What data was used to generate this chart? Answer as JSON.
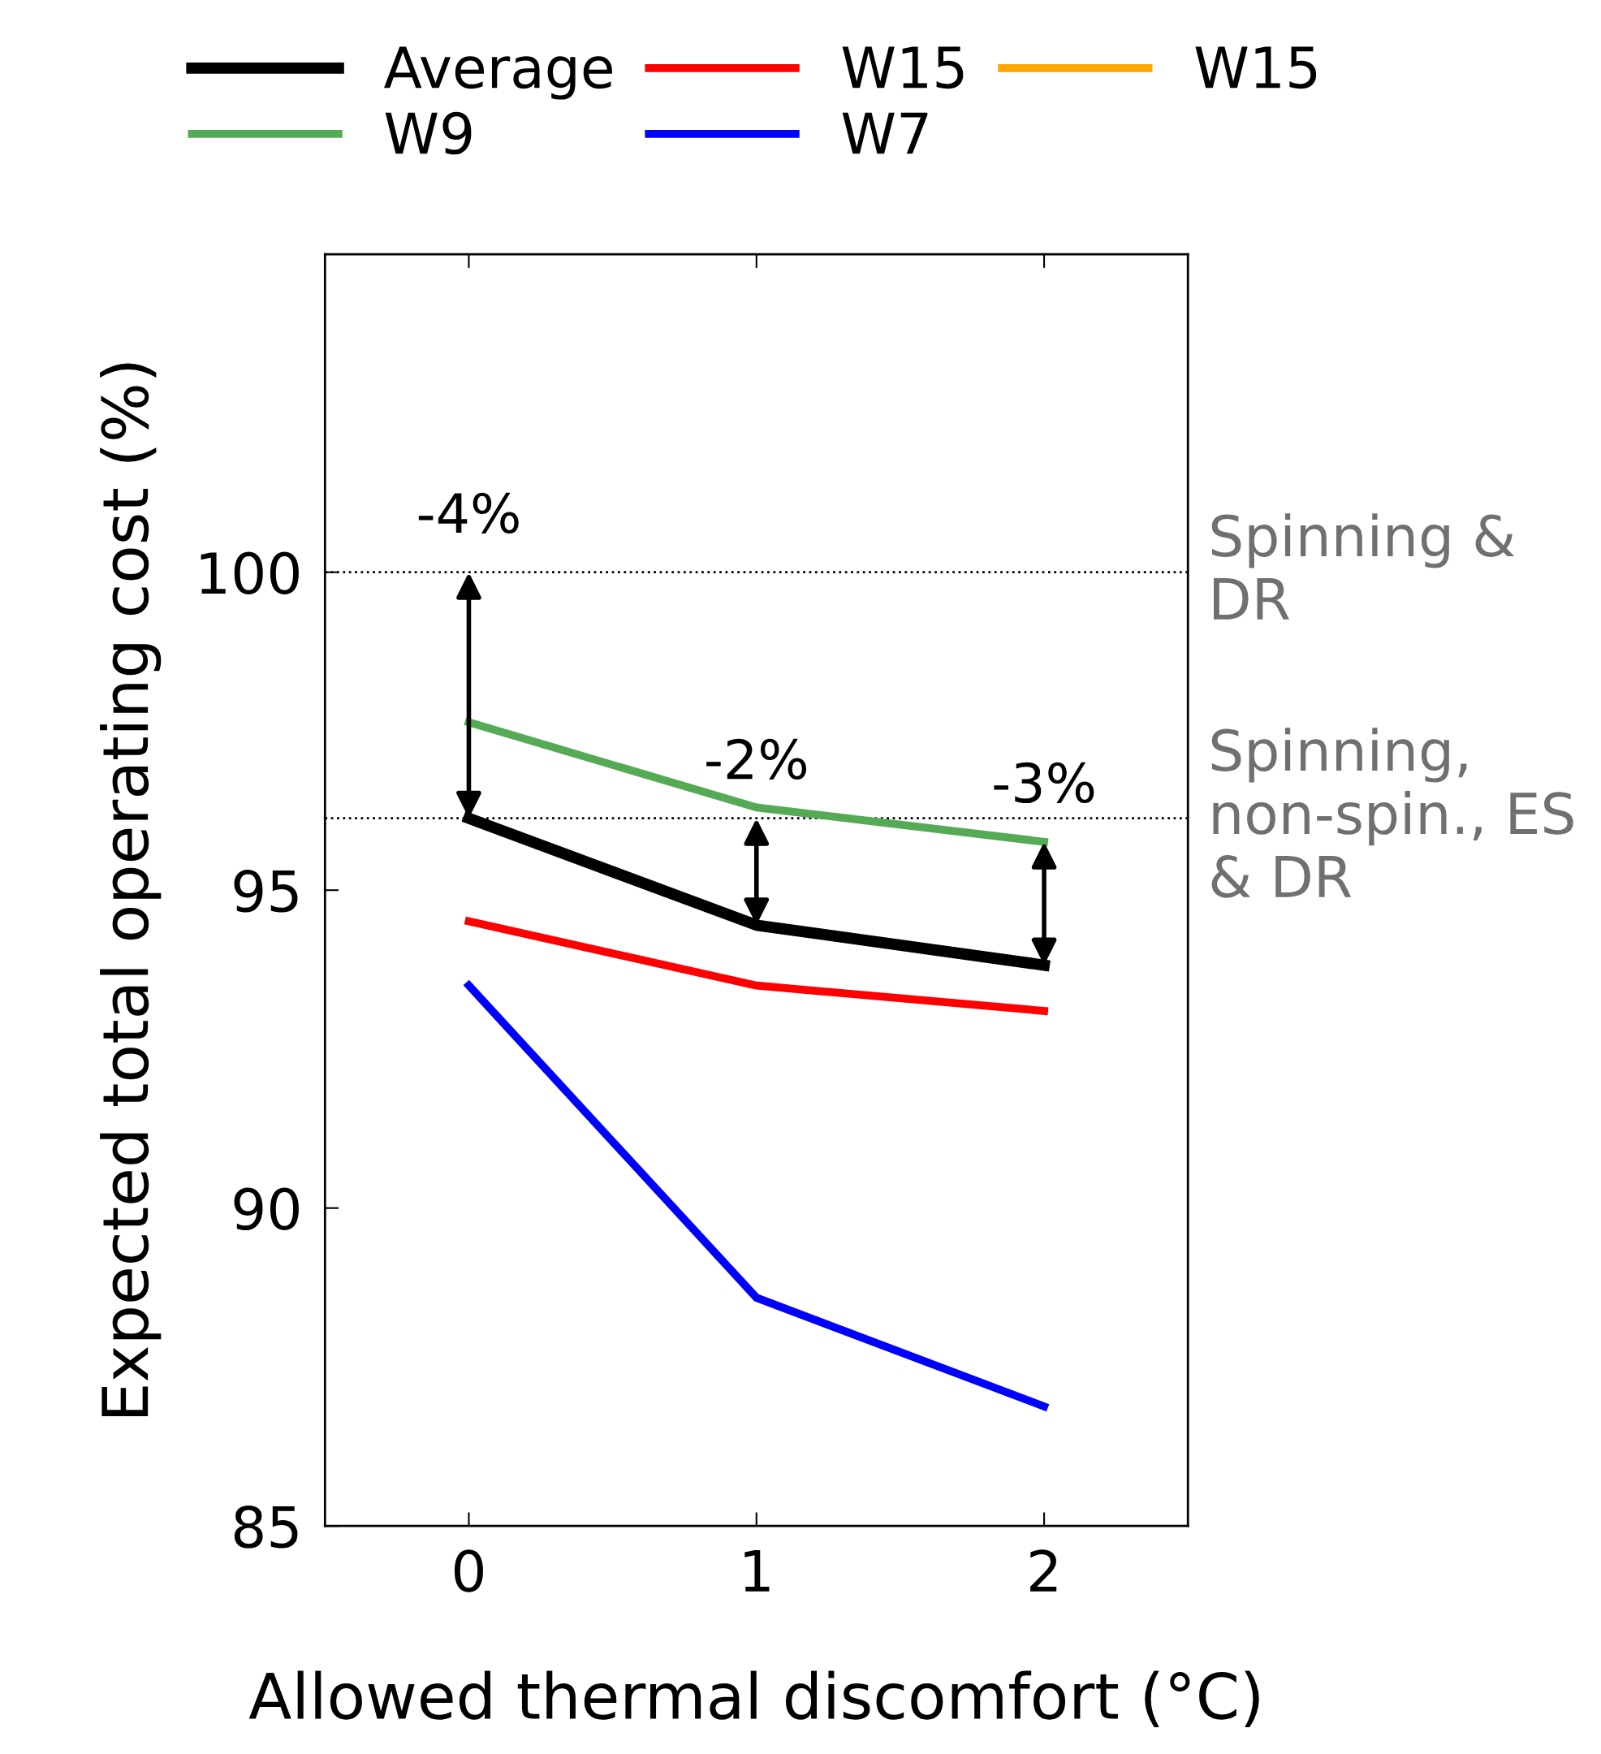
{
  "chart_data": {
    "type": "line",
    "xlabel": "Allowed thermal discomfort (°C)",
    "ylabel": "Expected total operating cost (%)",
    "x": [
      0,
      1,
      2
    ],
    "xlim": [
      -0.5,
      2.5
    ],
    "xticks": [
      0,
      1,
      2
    ],
    "ylim": [
      85,
      105
    ],
    "yticks": [
      85,
      90,
      95,
      100
    ],
    "series": [
      {
        "name": "Average",
        "color": "#000000",
        "values": [
          96.13,
          94.45,
          93.82
        ]
      },
      {
        "name": "W9",
        "color": "#55aa55",
        "values": [
          97.64,
          96.3,
          95.76
        ]
      },
      {
        "name": "W15",
        "color": "#ff0000",
        "values": [
          94.51,
          93.5,
          93.1
        ]
      },
      {
        "name": "W7",
        "color": "#0000ff",
        "values": [
          93.5,
          88.59,
          86.88
        ]
      },
      {
        "name": "W15",
        "color": "#ffa500",
        "values": [
          null,
          null,
          null
        ]
      }
    ],
    "ref_lines": [
      {
        "axis": "y",
        "value": 100,
        "label": "Spinning & DR",
        "color": "#000000",
        "line_style": "dotted"
      },
      {
        "axis": "y",
        "value": 96.13,
        "label": "Spinning, non-spin., ES & DR",
        "color": "#000000",
        "line_style": "dotted"
      }
    ],
    "annotations": [
      {
        "text": "-4%",
        "x": 0,
        "y": 100
      },
      {
        "text": "-2%",
        "x": 1,
        "y": 96.13
      },
      {
        "text": "-3%",
        "x": 2,
        "y": 95.76
      }
    ],
    "legend": "top",
    "grid": false,
    "marker": "none",
    "line_style": "solid"
  }
}
